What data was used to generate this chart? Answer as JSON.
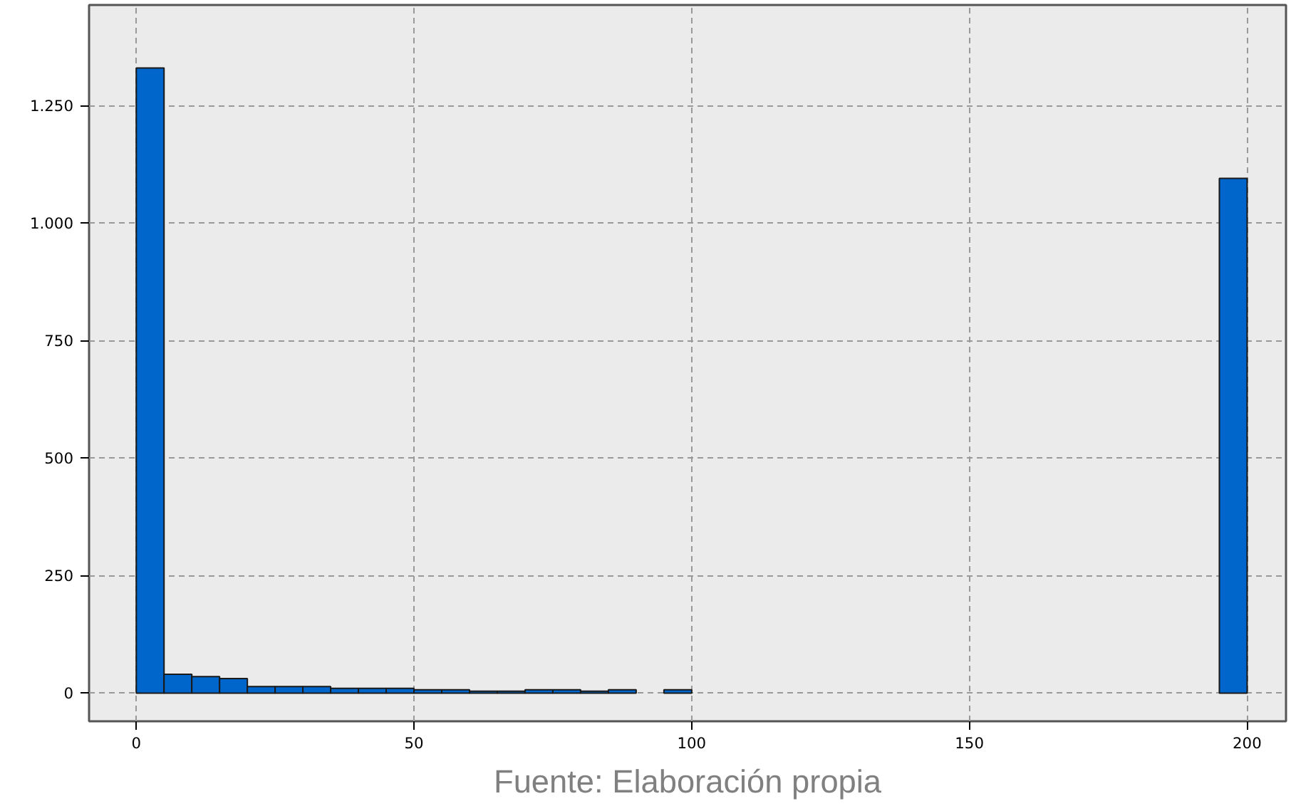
{
  "chart_data": {
    "type": "histogram",
    "bins": [
      0,
      5,
      10,
      15,
      20,
      25,
      30,
      35,
      40,
      45,
      50,
      55,
      60,
      65,
      70,
      75,
      80,
      85,
      90,
      95,
      100,
      105,
      110,
      115,
      120,
      125,
      130,
      135,
      140,
      145,
      150,
      155,
      160,
      165,
      170,
      175,
      180,
      185,
      190,
      195,
      200
    ],
    "values": [
      1330,
      40,
      35,
      31,
      14,
      14,
      14,
      10,
      10,
      10,
      7,
      7,
      4,
      4,
      7,
      7,
      4,
      7,
      0,
      7,
      0,
      0,
      0,
      0,
      0,
      0,
      0,
      0,
      0,
      0,
      0,
      0,
      0,
      0,
      0,
      0,
      0,
      0,
      0,
      1095
    ],
    "color": "#0066cc",
    "xlim": [
      -8.5,
      207
    ],
    "ylim": [
      -60,
      1464
    ],
    "xticks": [
      0,
      50,
      100,
      150,
      200
    ],
    "yticks": [
      0,
      250,
      500,
      750,
      {
        "value": 1000,
        "label": "1.000"
      },
      {
        "value": 1250,
        "label": "1.250"
      }
    ],
    "grid": true,
    "annotations": [
      "Fuente: Elaboración propia"
    ]
  }
}
